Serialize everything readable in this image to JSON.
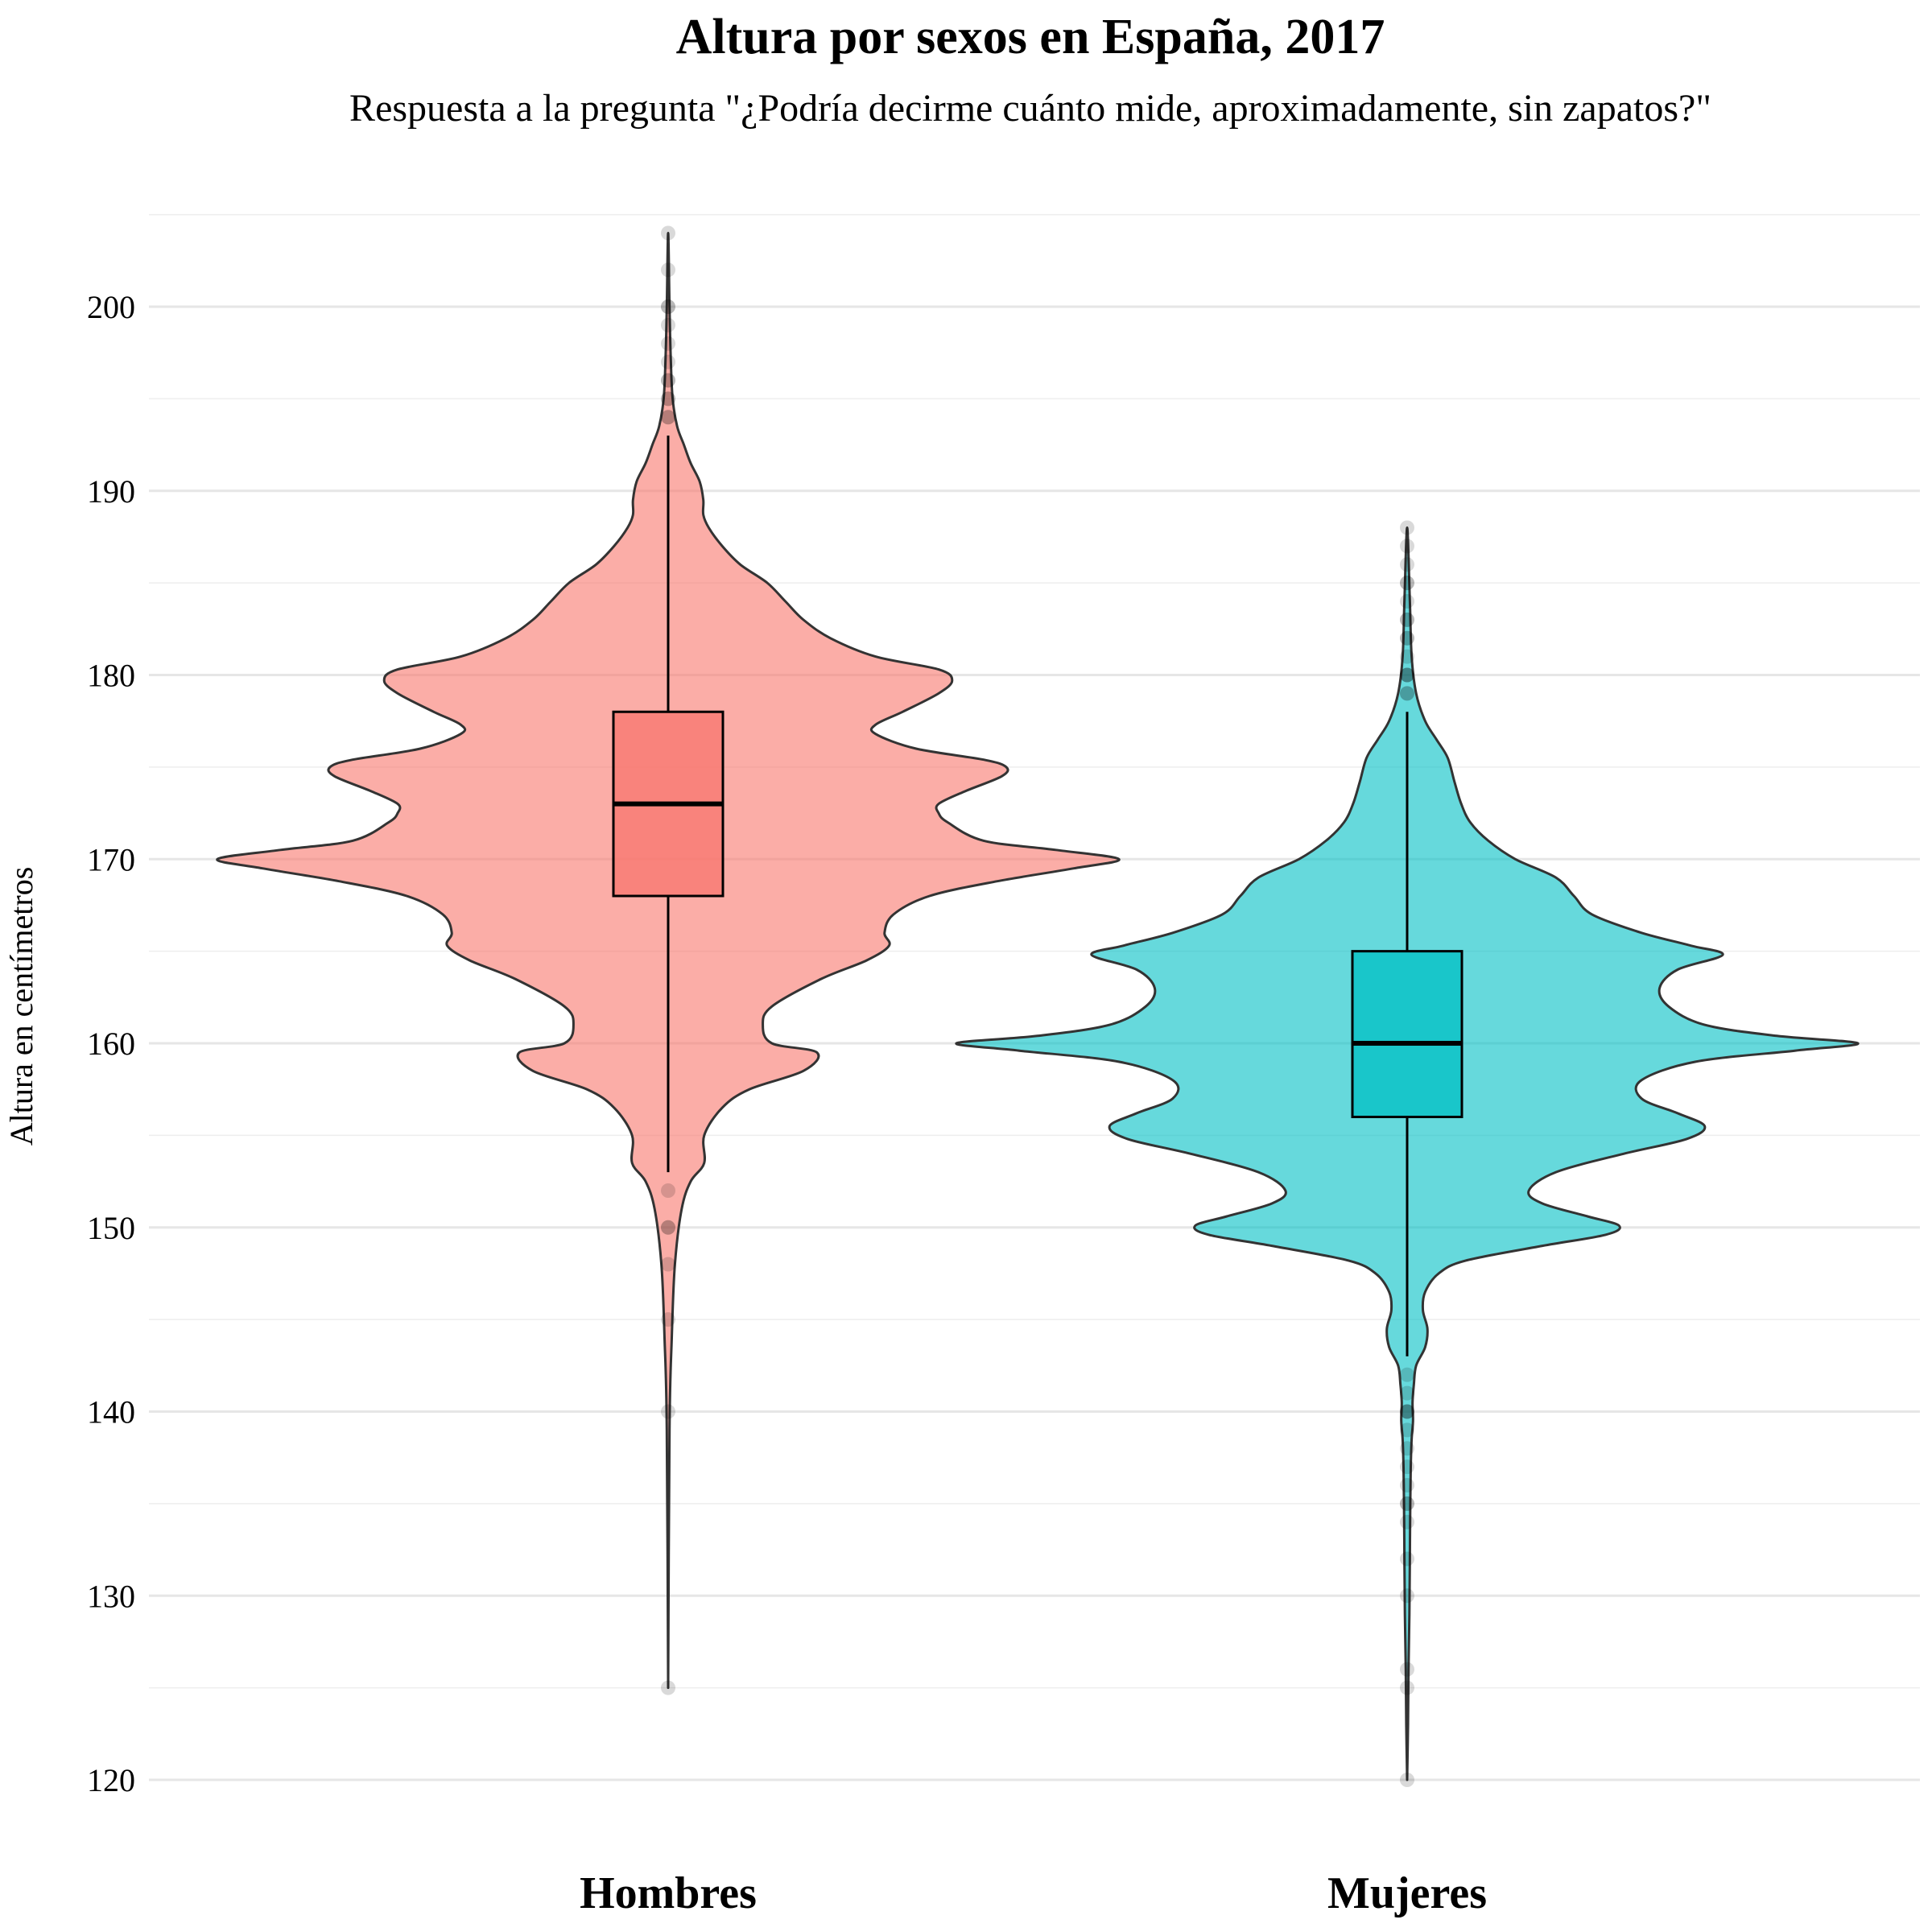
{
  "title": "Altura por sexos en España, 2017",
  "subtitle": "Respuesta a la pregunta \"¿Podría decirme cuánto mide, aproximadamente, sin zapatos?\"",
  "chart_data": {
    "type": "violin",
    "title": "Altura por sexos en España, 2017",
    "subtitle": "Respuesta a la pregunta \"¿Podría decirme cuánto mide, aproximadamente, sin zapatos?\"",
    "xlabel": "",
    "ylabel": "Altura en centímetros",
    "ylim": [
      118,
      205
    ],
    "yticks": [
      120,
      130,
      140,
      150,
      160,
      170,
      180,
      190,
      200
    ],
    "grid": true,
    "legend": "none",
    "categories": [
      "Hombres",
      "Mujeres"
    ],
    "series": [
      {
        "name": "Hombres",
        "color": "#F8766D",
        "box": {
          "q1": 168,
          "median": 173,
          "q3": 178,
          "whisker_low": 153,
          "whisker_high": 193
        },
        "outliers": [
          204,
          202,
          200,
          200,
          199,
          198,
          197,
          196,
          196,
          195,
          195,
          194,
          194,
          152,
          150,
          150,
          148,
          145,
          140,
          125
        ],
        "density_profile": [
          [
            125,
            0.0
          ],
          [
            139,
            0.003
          ],
          [
            144,
            0.008
          ],
          [
            148,
            0.015
          ],
          [
            151,
            0.03
          ],
          [
            152.5,
            0.05
          ],
          [
            153.5,
            0.08
          ],
          [
            155,
            0.08
          ],
          [
            156.5,
            0.12
          ],
          [
            157.5,
            0.18
          ],
          [
            158.5,
            0.3
          ],
          [
            159.5,
            0.33
          ],
          [
            160,
            0.23
          ],
          [
            161,
            0.21
          ],
          [
            162,
            0.23
          ],
          [
            163.5,
            0.34
          ],
          [
            164.5,
            0.44
          ],
          [
            165.3,
            0.49
          ],
          [
            166,
            0.48
          ],
          [
            167,
            0.5
          ],
          [
            168,
            0.58
          ],
          [
            168.8,
            0.73
          ],
          [
            169.5,
            0.9
          ],
          [
            170,
            1.0
          ],
          [
            170.5,
            0.86
          ],
          [
            171,
            0.7
          ],
          [
            172,
            0.62
          ],
          [
            172.5,
            0.6
          ],
          [
            173,
            0.6
          ],
          [
            173.7,
            0.66
          ],
          [
            174.5,
            0.74
          ],
          [
            175,
            0.75
          ],
          [
            175.4,
            0.7
          ],
          [
            176,
            0.55
          ],
          [
            176.8,
            0.46
          ],
          [
            177.3,
            0.46
          ],
          [
            178,
            0.52
          ],
          [
            179,
            0.6
          ],
          [
            179.7,
            0.63
          ],
          [
            180.3,
            0.6
          ],
          [
            181,
            0.46
          ],
          [
            182,
            0.36
          ],
          [
            183,
            0.3
          ],
          [
            184,
            0.26
          ],
          [
            185,
            0.22
          ],
          [
            186,
            0.16
          ],
          [
            187,
            0.12
          ],
          [
            188,
            0.09
          ],
          [
            188.7,
            0.078
          ],
          [
            189.5,
            0.078
          ],
          [
            190.5,
            0.07
          ],
          [
            191.5,
            0.05
          ],
          [
            192.5,
            0.035
          ],
          [
            193.5,
            0.02
          ],
          [
            195,
            0.01
          ],
          [
            197,
            0.006
          ],
          [
            200,
            0.003
          ],
          [
            204,
            0.0
          ]
        ]
      },
      {
        "name": "Mujeres",
        "color": "#00BFC4",
        "box": {
          "q1": 156,
          "median": 160,
          "q3": 165,
          "whisker_low": 143,
          "whisker_high": 178
        },
        "outliers": [
          188,
          187,
          186,
          185,
          185,
          184,
          183,
          183,
          182,
          182,
          181,
          180,
          180,
          180,
          179,
          179,
          142,
          141,
          140,
          140,
          140,
          139,
          138,
          137,
          136,
          135,
          135,
          134,
          132,
          130,
          126,
          125,
          120
        ],
        "density_profile": [
          [
            120,
            0.0
          ],
          [
            123,
            0.002
          ],
          [
            126,
            0.003
          ],
          [
            129,
            0.005
          ],
          [
            132,
            0.006
          ],
          [
            135,
            0.007
          ],
          [
            137,
            0.008
          ],
          [
            138.5,
            0.01
          ],
          [
            139.5,
            0.013
          ],
          [
            140.5,
            0.012
          ],
          [
            141.5,
            0.015
          ],
          [
            142.5,
            0.02
          ],
          [
            143.5,
            0.04
          ],
          [
            144.5,
            0.045
          ],
          [
            145.5,
            0.035
          ],
          [
            146.5,
            0.04
          ],
          [
            147.5,
            0.07
          ],
          [
            148.2,
            0.13
          ],
          [
            149,
            0.3
          ],
          [
            149.6,
            0.44
          ],
          [
            150.1,
            0.47
          ],
          [
            150.6,
            0.4
          ],
          [
            151.3,
            0.3
          ],
          [
            152,
            0.27
          ],
          [
            153,
            0.33
          ],
          [
            154,
            0.48
          ],
          [
            154.8,
            0.62
          ],
          [
            155.5,
            0.66
          ],
          [
            156.2,
            0.6
          ],
          [
            157,
            0.52
          ],
          [
            158,
            0.52
          ],
          [
            159,
            0.64
          ],
          [
            159.6,
            0.86
          ],
          [
            160,
            1.0
          ],
          [
            160.4,
            0.82
          ],
          [
            161,
            0.66
          ],
          [
            162,
            0.58
          ],
          [
            163,
            0.56
          ],
          [
            164,
            0.6
          ],
          [
            164.8,
            0.7
          ],
          [
            165.3,
            0.63
          ],
          [
            166,
            0.52
          ],
          [
            167,
            0.41
          ],
          [
            168,
            0.37
          ],
          [
            169,
            0.33
          ],
          [
            170,
            0.24
          ],
          [
            171,
            0.18
          ],
          [
            172,
            0.14
          ],
          [
            173,
            0.12
          ],
          [
            174.2,
            0.105
          ],
          [
            175.5,
            0.09
          ],
          [
            176.5,
            0.065
          ],
          [
            177.5,
            0.04
          ],
          [
            179,
            0.02
          ],
          [
            181,
            0.01
          ],
          [
            184,
            0.006
          ],
          [
            188,
            0.0
          ]
        ]
      }
    ]
  }
}
